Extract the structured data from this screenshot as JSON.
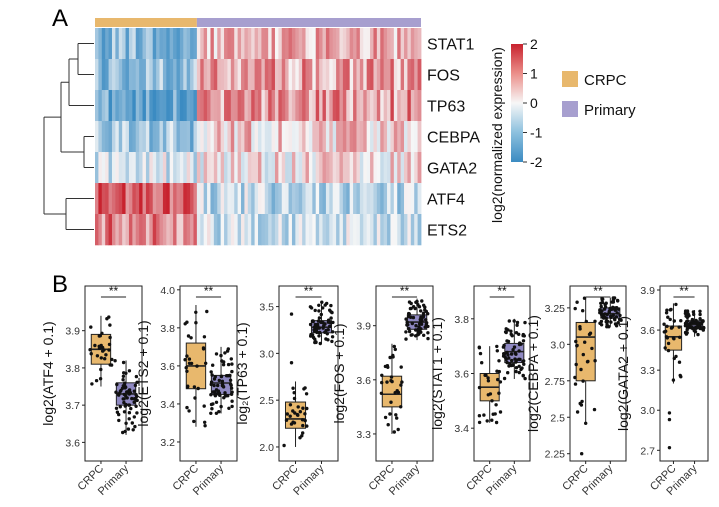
{
  "panels": {
    "a": "A",
    "b": "B"
  },
  "colors": {
    "crpc": "#E8B86D",
    "primary": "#A79FCF",
    "crpc_box": "#E8B86D",
    "primary_box": "#8F89C2",
    "low": "#3B8BC2",
    "mid": "#F7F7F7",
    "high": "#C8222E",
    "point": "#111111"
  },
  "chart_data": [
    {
      "type": "heatmap",
      "panel": "A",
      "title": "",
      "rows": [
        "STAT1",
        "FOS",
        "TP63",
        "CEBPA",
        "GATA2",
        "ATF4",
        "ETS2"
      ],
      "groups": [
        {
          "name": "CRPC",
          "n_samples": 30
        },
        {
          "name": "Primary",
          "n_samples": 66
        }
      ],
      "group_mean_values": {
        "CRPC": [
          -1.2,
          -1.0,
          -1.5,
          -0.9,
          -0.3,
          1.6,
          1.1
        ],
        "Primary": [
          0.6,
          0.8,
          0.9,
          0.4,
          0.15,
          -0.6,
          -0.4
        ]
      },
      "legend": {
        "title": "log2(normalized expression)",
        "ticks": [
          2,
          1,
          0,
          -1,
          -2
        ],
        "range": [
          -2,
          2
        ]
      },
      "group_legend": [
        "CRPC",
        "Primary"
      ],
      "dendrogram": "rows clustered (hierarchical)"
    },
    {
      "type": "box",
      "panel": "B",
      "ylabel": "log2(ATF4 + 0.1)",
      "categories": [
        "CRPC",
        "Primary"
      ],
      "ylim": [
        3.55,
        4.02
      ],
      "ticks": [
        3.6,
        3.7,
        3.8,
        3.9
      ],
      "stats": [
        {
          "min": 3.75,
          "q1": 3.81,
          "median": 3.85,
          "q3": 3.89,
          "max": 3.94
        },
        {
          "min": 3.62,
          "q1": 3.7,
          "median": 3.73,
          "q3": 3.76,
          "max": 3.82
        }
      ],
      "n": [
        30,
        66
      ],
      "significance": "**"
    },
    {
      "type": "box",
      "panel": "B",
      "ylabel": "log2(ETS2 + 0.1)",
      "categories": [
        "CRPC",
        "Primary"
      ],
      "ylim": [
        3.1,
        4.02
      ],
      "ticks": [
        3.2,
        3.4,
        3.6,
        3.8,
        4.0
      ],
      "stats": [
        {
          "min": 3.28,
          "q1": 3.48,
          "median": 3.6,
          "q3": 3.72,
          "max": 3.92
        },
        {
          "min": 3.35,
          "q1": 3.45,
          "median": 3.51,
          "q3": 3.55,
          "max": 3.7
        }
      ],
      "n": [
        30,
        66
      ],
      "significance": "**"
    },
    {
      "type": "box",
      "panel": "B",
      "ylabel": "log₂(TP63 + 0.1)",
      "categories": [
        "CRPC",
        "Primary"
      ],
      "ylim": [
        1.85,
        3.72
      ],
      "ticks": [
        2.0,
        2.5,
        3.0,
        3.5
      ],
      "stats": [
        {
          "min": 2.0,
          "q1": 2.2,
          "median": 2.3,
          "q3": 2.48,
          "max": 2.7
        },
        {
          "min": 3.1,
          "q1": 3.22,
          "median": 3.28,
          "q3": 3.35,
          "max": 3.55
        }
      ],
      "n": [
        30,
        66
      ],
      "outliers": [
        [
          0,
          2.9
        ],
        [
          0,
          3.42
        ]
      ],
      "significance": "**"
    },
    {
      "type": "box",
      "panel": "B",
      "ylabel": "log2(FOS + 0.1)",
      "categories": [
        "CRPC",
        "Primary"
      ],
      "ylim": [
        3.15,
        4.12
      ],
      "ticks": [
        3.3,
        3.6,
        3.9
      ],
      "stats": [
        {
          "min": 3.3,
          "q1": 3.45,
          "median": 3.52,
          "q3": 3.62,
          "max": 3.8
        },
        {
          "min": 3.82,
          "q1": 3.88,
          "median": 3.92,
          "q3": 3.96,
          "max": 4.05
        }
      ],
      "n": [
        30,
        66
      ],
      "significance": "**"
    },
    {
      "type": "box",
      "panel": "B",
      "ylabel": "log2(STAT1 + 0.1)",
      "categories": [
        "CRPC",
        "Primary"
      ],
      "ylim": [
        3.28,
        3.92
      ],
      "ticks": [
        3.4,
        3.6,
        3.8
      ],
      "stats": [
        {
          "min": 3.42,
          "q1": 3.5,
          "median": 3.55,
          "q3": 3.6,
          "max": 3.7
        },
        {
          "min": 3.58,
          "q1": 3.64,
          "median": 3.68,
          "q3": 3.71,
          "max": 3.8
        }
      ],
      "n": [
        30,
        66
      ],
      "significance": "**"
    },
    {
      "type": "box",
      "panel": "B",
      "ylabel": "log2(CEBPA + 0.1)",
      "categories": [
        "CRPC",
        "Primary"
      ],
      "ylim": [
        2.2,
        3.4
      ],
      "ticks": [
        2.25,
        2.5,
        2.75,
        3.0,
        3.25
      ],
      "stats": [
        {
          "min": 2.45,
          "q1": 2.75,
          "median": 3.05,
          "q3": 3.15,
          "max": 3.32
        },
        {
          "min": 3.12,
          "q1": 3.18,
          "median": 3.21,
          "q3": 3.25,
          "max": 3.32
        }
      ],
      "n": [
        30,
        66
      ],
      "outliers": [
        [
          0,
          2.25
        ]
      ],
      "significance": "**"
    },
    {
      "type": "box",
      "panel": "B",
      "ylabel": "log2(GATA2 + 0.1)",
      "categories": [
        "CRPC",
        "Primary"
      ],
      "ylim": [
        2.62,
        3.93
      ],
      "ticks": [
        2.7,
        3.0,
        3.3,
        3.6,
        3.9
      ],
      "stats": [
        {
          "min": 3.2,
          "q1": 3.45,
          "median": 3.55,
          "q3": 3.63,
          "max": 3.8
        },
        {
          "min": 3.55,
          "q1": 3.61,
          "median": 3.64,
          "q3": 3.67,
          "max": 3.75
        }
      ],
      "n": [
        30,
        66
      ],
      "outliers": [
        [
          0,
          2.72
        ],
        [
          0,
          2.93
        ],
        [
          0,
          2.98
        ]
      ],
      "significance": "**"
    }
  ]
}
